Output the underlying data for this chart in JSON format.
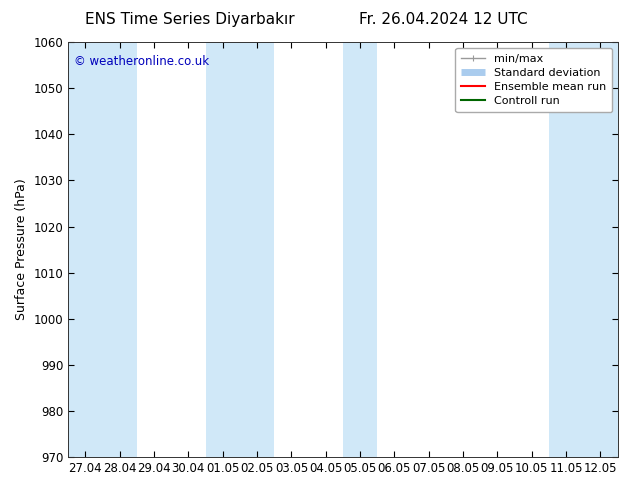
{
  "title_left": "ENS Time Series Diyarbakır",
  "title_right": "Fr. 26.04.2024 12 UTC",
  "ylabel": "Surface Pressure (hPa)",
  "ylim": [
    970,
    1060
  ],
  "yticks": [
    970,
    980,
    990,
    1000,
    1010,
    1020,
    1030,
    1040,
    1050,
    1060
  ],
  "xtick_labels": [
    "27.04",
    "28.04",
    "29.04",
    "30.04",
    "01.05",
    "02.05",
    "03.05",
    "04.05",
    "05.05",
    "06.05",
    "07.05",
    "08.05",
    "09.05",
    "10.05",
    "11.05",
    "12.05"
  ],
  "num_xticks": 16,
  "watermark": "© weatheronline.co.uk",
  "watermark_color": "#0000bb",
  "background_color": "#ffffff",
  "plot_bg_color": "#ffffff",
  "shaded_band_color": "#d0e8f8",
  "shaded_columns": [
    0,
    1,
    4,
    5,
    8,
    14,
    15
  ],
  "legend_items": [
    {
      "label": "min/max",
      "color": "#999999",
      "lw": 1.0,
      "type": "errorbar"
    },
    {
      "label": "Standard deviation",
      "color": "#aaccee",
      "lw": 5,
      "type": "band"
    },
    {
      "label": "Ensemble mean run",
      "color": "#ff0000",
      "lw": 1.5,
      "type": "line"
    },
    {
      "label": "Controll run",
      "color": "#006600",
      "lw": 1.5,
      "type": "line"
    }
  ],
  "title_fontsize": 11,
  "axis_label_fontsize": 9,
  "tick_fontsize": 8.5,
  "legend_fontsize": 8
}
